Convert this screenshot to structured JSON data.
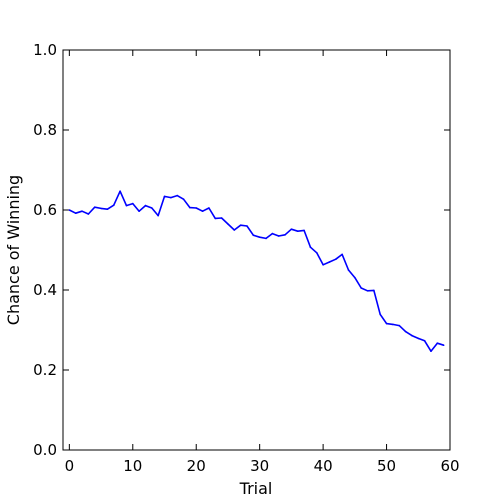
{
  "chart_data": {
    "type": "line",
    "title": "",
    "xlabel": "Trial",
    "ylabel": "Chance of Winning",
    "xlim": [
      -1,
      60
    ],
    "ylim": [
      0.0,
      1.0
    ],
    "xticks": [
      0,
      10,
      20,
      30,
      40,
      50,
      60
    ],
    "xtick_labels": [
      "0",
      "10",
      "20",
      "30",
      "40",
      "50",
      "60"
    ],
    "yticks": [
      0.0,
      0.2,
      0.4,
      0.6,
      0.8,
      1.0
    ],
    "ytick_labels": [
      "0.0",
      "0.2",
      "0.4",
      "0.6",
      "0.8",
      "1.0"
    ],
    "grid": false,
    "legend": "none",
    "series": [
      {
        "color": "#0000ff",
        "x": [
          0,
          1,
          2,
          3,
          4,
          5,
          6,
          7,
          8,
          9,
          10,
          11,
          12,
          13,
          14,
          15,
          16,
          17,
          18,
          19,
          20,
          21,
          22,
          23,
          24,
          25,
          26,
          27,
          28,
          29,
          30,
          31,
          32,
          33,
          34,
          35,
          36,
          37,
          38,
          39,
          40,
          41,
          42,
          43,
          44,
          45,
          46,
          47,
          48,
          49,
          50,
          51,
          52,
          53,
          54,
          55,
          56,
          57,
          58,
          59
        ],
        "y": [
          0.6,
          0.592,
          0.597,
          0.59,
          0.607,
          0.604,
          0.602,
          0.612,
          0.647,
          0.611,
          0.616,
          0.597,
          0.611,
          0.605,
          0.586,
          0.634,
          0.631,
          0.636,
          0.627,
          0.606,
          0.605,
          0.597,
          0.605,
          0.579,
          0.58,
          0.565,
          0.55,
          0.562,
          0.56,
          0.537,
          0.532,
          0.529,
          0.541,
          0.535,
          0.538,
          0.552,
          0.547,
          0.549,
          0.507,
          0.493,
          0.463,
          0.47,
          0.477,
          0.489,
          0.45,
          0.431,
          0.405,
          0.398,
          0.399,
          0.339,
          0.316,
          0.314,
          0.311,
          0.296,
          0.286,
          0.279,
          0.273,
          0.247,
          0.267,
          0.262
        ]
      }
    ]
  }
}
